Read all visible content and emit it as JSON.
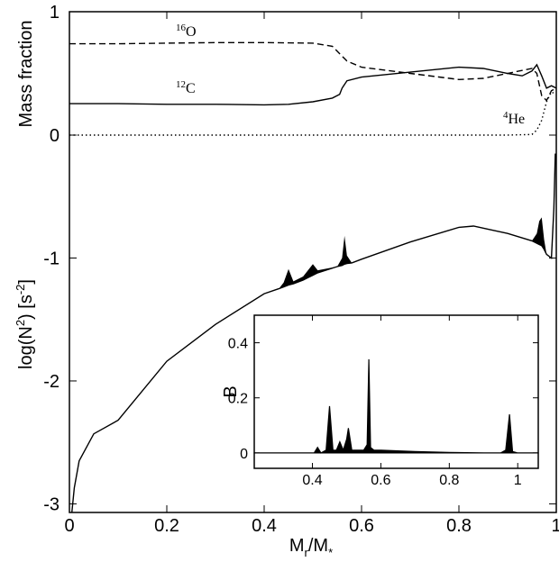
{
  "chart_data": [
    {
      "type": "line",
      "ylabel": [
        "Mass fraction"
      ],
      "xlim": [
        0,
        1
      ],
      "ylim": [
        0,
        1
      ],
      "yticks": [
        0,
        1
      ],
      "annotations": [
        [
          "16",
          "O"
        ],
        [
          "12",
          "C"
        ],
        [
          "4",
          "He"
        ]
      ],
      "series": [
        {
          "color": "#000",
          "dash": "dashed",
          "x": [
            0,
            0.1,
            0.2,
            0.3,
            0.4,
            0.5,
            0.54,
            0.555,
            0.56,
            0.57,
            0.6,
            0.7,
            0.8,
            0.85,
            0.9,
            0.95,
            0.96,
            0.97,
            0.98,
            0.99,
            1
          ],
          "values": [
            0.74,
            0.74,
            0.745,
            0.75,
            0.75,
            0.745,
            0.72,
            0.66,
            0.64,
            0.6,
            0.55,
            0.5,
            0.45,
            0.46,
            0.5,
            0.54,
            0.5,
            0.32,
            0.28,
            0.36,
            0.38
          ]
        },
        {
          "color": "#000",
          "dash": "solid",
          "x": [
            0,
            0.1,
            0.2,
            0.3,
            0.4,
            0.45,
            0.5,
            0.54,
            0.555,
            0.56,
            0.57,
            0.6,
            0.7,
            0.8,
            0.85,
            0.9,
            0.93,
            0.95,
            0.96,
            0.97,
            0.98,
            0.99,
            1
          ],
          "values": [
            0.255,
            0.255,
            0.25,
            0.25,
            0.245,
            0.25,
            0.27,
            0.3,
            0.33,
            0.38,
            0.44,
            0.47,
            0.51,
            0.55,
            0.54,
            0.5,
            0.48,
            0.52,
            0.57,
            0.48,
            0.38,
            0.4,
            0.38
          ]
        },
        {
          "color": "#000",
          "dash": "dotted",
          "x": [
            0,
            0.5,
            0.9,
            0.95,
            0.96,
            0.97,
            0.98,
            0.99,
            1
          ],
          "values": [
            0,
            0,
            0,
            0.005,
            0.04,
            0.12,
            0.27,
            0.35,
            0.33
          ]
        }
      ]
    },
    {
      "type": "line",
      "ylabel": [
        "log(N",
        "2",
        ") [s",
        "-2",
        "]"
      ],
      "xlabel": [
        "M",
        "r",
        "/M",
        "*"
      ],
      "xlim": [
        0,
        1
      ],
      "xticks": [
        0,
        0.2,
        0.4,
        0.6,
        0.8,
        1
      ],
      "ylim": [
        -3.07,
        0
      ],
      "yticks": [
        -1,
        -2,
        -3
      ],
      "x": [
        0.005,
        0.01,
        0.02,
        0.05,
        0.1,
        0.2,
        0.3,
        0.4,
        0.43,
        0.44,
        0.45,
        0.46,
        0.48,
        0.49,
        0.5,
        0.51,
        0.55,
        0.56,
        0.565,
        0.57,
        0.58,
        0.6,
        0.7,
        0.8,
        0.83,
        0.9,
        0.95,
        0.96,
        0.965,
        0.97,
        0.975,
        0.98,
        0.99,
        0.995,
        0.998
      ],
      "series": [
        {
          "color": "#000",
          "values": [
            -3.07,
            -2.87,
            -2.65,
            -2.43,
            -2.32,
            -1.84,
            -1.54,
            -1.29,
            -1.25,
            -1.235,
            -1.22,
            -1.21,
            -1.18,
            -1.16,
            -1.14,
            -1.12,
            -1.07,
            -1.06,
            -1.05,
            -1.045,
            -1.04,
            -1.01,
            -0.87,
            -0.75,
            -0.74,
            -0.8,
            -0.86,
            -0.88,
            -0.89,
            -0.9,
            -0.93,
            -0.97,
            -1.0,
            -0.6,
            -0.15
          ]
        },
        {
          "color": "#000",
          "values": [
            -3.07,
            -2.87,
            -2.65,
            -2.43,
            -2.32,
            -1.84,
            -1.54,
            -1.29,
            -1.25,
            -1.2,
            -1.09,
            -1.19,
            -1.15,
            -1.1,
            -1.05,
            -1.1,
            -1.07,
            -1.0,
            -0.82,
            -0.98,
            -1.04,
            -1.01,
            -0.87,
            -0.75,
            -0.74,
            -0.8,
            -0.86,
            -0.8,
            -0.7,
            -0.67,
            -0.85,
            -0.97,
            -1.0,
            -0.6,
            -0.15
          ]
        }
      ]
    },
    {
      "type": "area",
      "ylabel": [
        "B"
      ],
      "xlim": [
        0.23,
        1.06
      ],
      "xticks": [
        0.4,
        0.6,
        0.8,
        1
      ],
      "ylim": [
        -0.056,
        0.5
      ],
      "yticks": [
        0,
        0.2,
        0.4
      ],
      "x": [
        0.23,
        0.405,
        0.415,
        0.425,
        0.44,
        0.45,
        0.46,
        0.47,
        0.48,
        0.49,
        0.5,
        0.505,
        0.515,
        0.53,
        0.55,
        0.56,
        0.565,
        0.57,
        0.58,
        0.6,
        0.7,
        0.8,
        0.9,
        0.95,
        0.965,
        0.976,
        0.985,
        1,
        1.06
      ],
      "values": [
        0,
        0,
        0.02,
        0,
        0.01,
        0.17,
        0.01,
        0.01,
        0.04,
        0.01,
        0.05,
        0.09,
        0.01,
        0.01,
        0.01,
        0.03,
        0.34,
        0.02,
        0.01,
        0.01,
        0.005,
        0.002,
        0,
        0,
        0.01,
        0.14,
        0.005,
        0,
        0
      ],
      "color": "#000"
    }
  ]
}
